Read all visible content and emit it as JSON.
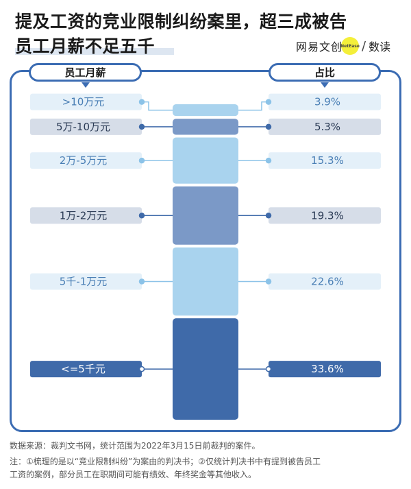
{
  "header": {
    "title_line1": "提及工资的竞业限制纠纷案里，超三成被告",
    "title_line2": "员工月薪不足五千"
  },
  "logo": {
    "brand": "网易文创",
    "badge": "NetEase",
    "sub": "数读"
  },
  "columns": {
    "left_header": "员工月薪",
    "right_header": "占比"
  },
  "chart_data": {
    "type": "bar",
    "categories": [
      ">10万元",
      "5万-10万元",
      "2万-5万元",
      "1万-2万元",
      "5千-1万元",
      "<=5千元"
    ],
    "values": [
      3.9,
      5.3,
      15.3,
      19.3,
      22.6,
      33.6
    ],
    "value_labels": [
      "3.9%",
      "5.3%",
      "15.3%",
      "19.3%",
      "22.6%",
      "33.6%"
    ],
    "colors": [
      "#a9d3ee",
      "#7b99c7",
      "#a9d3ee",
      "#7b99c7",
      "#a9d3ee",
      "#3f6aa9"
    ],
    "dark_label": [
      false,
      true,
      false,
      true,
      false,
      true
    ],
    "unit": "%"
  },
  "footer": {
    "source": "数据来源：裁判文书网，统计范围为2022年3月15日前裁判的案件。",
    "note_line1": "注：①梳理的是以“竞业限制纠纷”为案由的判决书；②仅统计判决书中有提到被告员工",
    "note_line2": "工资的案例，部分员工在职期间可能有绩效、年终奖金等其他收入。"
  }
}
